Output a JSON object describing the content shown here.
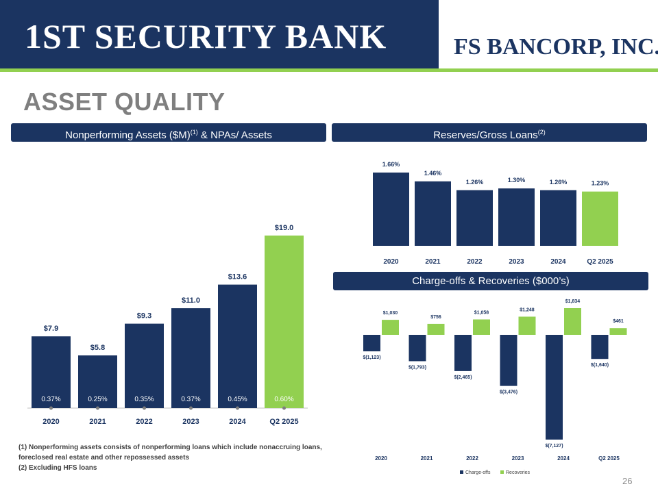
{
  "header": {
    "bank_logo": "1ST SECURITY BANK",
    "corp_logo": "FS BANCORP, INC."
  },
  "page_title": "ASSET QUALITY",
  "panels": {
    "npa": {
      "title": "Nonperforming Assets ($M)",
      "sup": "(1)",
      "title_tail": " & NPAs/ Assets"
    },
    "reserves": {
      "title": "Reserves/Gross Loans",
      "sup": "(2)"
    },
    "chargeoffs": {
      "title": "Charge-offs & Recoveries ($000’s)"
    }
  },
  "footnotes": {
    "line1": "(1) Nonperforming assets consists of nonperforming loans which include nonaccruing loans,",
    "line2": "foreclosed real estate and other repossessed assets",
    "line3": "(2) Excluding HFS loans"
  },
  "page_number": "26",
  "colors": {
    "navy": "#1b3461",
    "green": "#92d050",
    "grey_title": "#7f7f7f"
  },
  "chart_data": [
    {
      "type": "bar",
      "categories": [
        "2020",
        "2021",
        "2022",
        "2023",
        "2024",
        "Q2 2025"
      ],
      "values": [
        7.9,
        5.8,
        9.3,
        11.0,
        13.6,
        19.0
      ],
      "value_labels": [
        "$7.9",
        "$5.8",
        "$9.3",
        "$11.0",
        "$13.6",
        "$19.0"
      ],
      "secondary_values": [
        0.37,
        0.25,
        0.35,
        0.37,
        0.45,
        0.6
      ],
      "secondary_labels": [
        "0.37%",
        "0.25%",
        "0.35%",
        "0.37%",
        "0.45%",
        "0.60%"
      ],
      "highlight_last": true,
      "ylim": [
        0,
        19.0
      ]
    },
    {
      "type": "bar",
      "categories": [
        "2020",
        "2021",
        "2022",
        "2023",
        "2024",
        "Q2 2025"
      ],
      "values": [
        1.66,
        1.46,
        1.26,
        1.3,
        1.26,
        1.23
      ],
      "value_labels": [
        "1.66%",
        "1.46%",
        "1.26%",
        "1.30%",
        "1.26%",
        "1.23%"
      ],
      "highlight_last": true,
      "ylim": [
        0,
        1.66
      ]
    },
    {
      "type": "bar",
      "categories": [
        "2020",
        "2021",
        "2022",
        "2023",
        "2024",
        "Q2 2025"
      ],
      "series": [
        {
          "name": "Charge-offs",
          "values": [
            -1123,
            -1793,
            -2465,
            -3476,
            -7127,
            -1640
          ],
          "labels": [
            "$(1,123)",
            "$(1,793)",
            "$(2,465)",
            "$(3,476)",
            "$(7,127)",
            "$(1,640)"
          ]
        },
        {
          "name": "Recoveries",
          "values": [
            1030,
            756,
            1058,
            1248,
            1834,
            461
          ],
          "labels": [
            "$1,030",
            "$756",
            "$1,058",
            "$1,248",
            "$1,834",
            "$461"
          ]
        }
      ],
      "legend": "bottom"
    }
  ]
}
